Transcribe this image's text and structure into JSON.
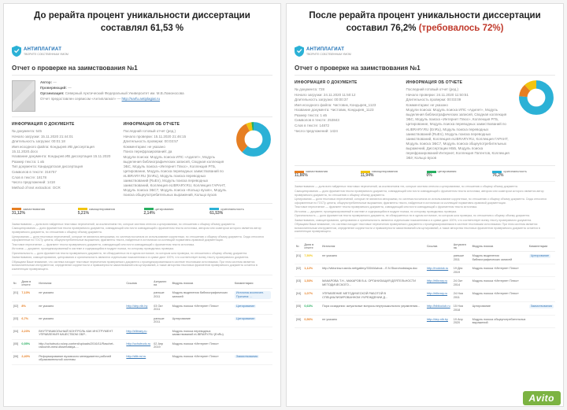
{
  "watermark": "Avito",
  "left": {
    "caption_line1": "До рерайта процент уникальности диссертации",
    "caption_line2": "составлял 61,53 %",
    "logo_text": "АНТИПЛАГИАТ",
    "logo_sub": "ТВОРИТЕ СОБСТВЕННЫМ УМОМ",
    "report_title": "Отчет о проверке на заимствования №1",
    "meta": {
      "author_lbl": "Автор:",
      "author": "—",
      "checker_lbl": "Проверяющий:",
      "checker": "—",
      "org_lbl": "Организация:",
      "org": "Северный Арктический Федеральный Университет им. М.В.Ломоносова",
      "provided_lbl": "Отчет предоставлен сервисом «Антиплагиат» —",
      "link_text": "http://narfu.antiplagiat.ru"
    },
    "doc": {
      "heading": "ИНФОРМАЦИЯ О ДОКУМЕНТЕ",
      "rows": [
        "№ документа: 545",
        "Начало загрузки: 15.11.2020 21:44:01",
        "Длительность загрузки: 00:01:18",
        "Имя исходного файла: Кондырев ИВ диссертация 15.11.2020.docx",
        "Название документа: Кондырев ИВ диссертация 15.11.2020",
        "Размер текста: 1 кБ",
        "Тип документа: Кандидатская диссертация",
        "Символов в тексте: 316757",
        "Слов в тексте: 18178",
        "Число предложений: 1418",
        "Method of text extraction: OCR"
      ]
    },
    "rep": {
      "heading": "ИНФОРМАЦИЯ ОБ ОТЧЕТЕ",
      "rows": [
        "Последний готовый отчет (ред.)",
        "Начало проверки: 15.11.2020 21:46:15",
        "Длительность проверки: 00:03:57",
        "Комментарии: не указано",
        "Поиск перефразирований: да",
        "Модули поиска: Модуль поиска ИПС «Адилет», Модуль выделения библиографических записей, Сводная коллекция ЭБС, Модуль поиска «Интернет Плюс», Коллекция РГБ, Цитирование, Модуль поиска переводных заимствований по eLIBRARY.RU (EnRu), Модуль поиска переводных заимствований (RuEn), Модуль поиска переводных заимствований, Коллекция eLIBRARY.RU, Коллекция ГАРАНТ, Модуль поиска ЭБС7, Модуль поиска «Кольцо вузов», Модуль поиска общеупотребительных выражений, Кольцо вузов"
      ]
    },
    "donut": {
      "colors": {
        "borrow": "#e67e22",
        "selfcite": "#f1c40f",
        "cite": "#27ae60",
        "orig": "#2bb1d6"
      },
      "borrow_pct": 31.12,
      "selfcite_pct": 5.21,
      "cite_pct": 2.14,
      "orig_pct": 61.53
    },
    "legend": {
      "borrow_lbl": "заимствования",
      "borrow_pct": "31,12%",
      "self_lbl": "самоцитирования",
      "self_pct": "5,21%",
      "cite_lbl": "цитирования",
      "cite_pct": "2,14%",
      "orig_lbl": "оригинальность",
      "orig_pct": "61,53%"
    },
    "fineprint": [
      "Заимствования — доля всех найденных текстовых пересечений, за исключением тех, которые система отнесла к цитированиям, по отношению к общему объему документа.",
      "Самоцитирования — доля фрагментов текста проверяемого документа, совпадающий или почти совпадающий с фрагментом текста источника, автором или соавтором которого является автор проверяемого документа, по отношению к общему объему документа.",
      "Цитирования — доля текстовых пересечений, которые не являются авторскими, но система посчитала их использование корректным, по отношению к общему объему документа. Сюда относятся оформленные по ГОСТу цитаты; общеупотребительные выражения; фрагменты текста, найденные в источниках из коллекций нормативно-правовой документации.",
      "Текстовое пересечение — фрагмент текста проверяемого документа, совпадающий или почти совпадающий с фрагментом текста источника.",
      "Источник — документ, проиндексированный в системе и содержащийся в модуле поиска, по которому проводилась проверка.",
      "Оригинальность — доля фрагментов текста проверяемого документа, не обнаруженных ни в одном источнике, по которым шла проверка, по отношению к общему объему документа.",
      "Заимствования, самоцитирования, цитирования и оригинальность являются отдельными показателями и в сумме дают 100%, что соответствует всему тексту проверяемого документа.",
      "Обращаем Ваше внимание, что система находит текстовые пересечения проверяемого документа с проиндексированными в системе текстовыми источниками. При этом система является вспомогательным инструментом, определение корректности и правомерности заимствований или цитирований, а также авторства текстовых фрагментов проверяемого документа остается в компетенции проверяющего."
    ],
    "table": {
      "cols": [
        "№",
        "Доля в отчете",
        "Источник",
        "Ссылка",
        "Актуален на",
        "Модуль поиска",
        "Комментарии"
      ],
      "rows": [
        {
          "n": "[01]",
          "pct": "7,13%",
          "pcol": "#e67e22",
          "src": "не указано",
          "link": "",
          "date": "раньше 2011",
          "mod": "Модуль выделения библиографических записей",
          "cmt": "Источник исключен. Причина: ..."
        },
        {
          "n": "[02]",
          "pct": "8%",
          "pcol": "#e67e22",
          "src": "не указано",
          "link": "http://dep.nlb.by",
          "date": "03 Окт 2011",
          "mod": "Модуль поиска «Интернет Плюс»",
          "cmt": "Цитирование"
        },
        {
          "n": "[03]",
          "pct": "6,7%",
          "pcol": "#e67e22",
          "src": "не указано",
          "link": "",
          "date": "раньше 2011",
          "mod": "Цитирование",
          "cmt": "Цитирование"
        },
        {
          "n": "[04]",
          "pct": "2,23%",
          "pcol": "#e67e22",
          "src": "ВНУТРИШКОЛЬНЫЙ КОНТРОЛЬ КАК ИНСТРУМЕНТ УПРАВЛЕНИЯ КАЧЕСТВОМ ОБР...",
          "link": "http://elibrary.ru",
          "date": "",
          "mod": "Модуль поиска переводных заимствований eLIBRARY.RU (EnRu)",
          "cmt": ""
        },
        {
          "n": "[05]",
          "pct": "0,55%",
          "pcol": "#27ae60",
          "src": "http://uchutrudu.ru/wp-content/uploads/2016/11/Raschet-rabochih-mest.dissertatsiya-...",
          "link": "http://uchutrudu.ru",
          "date": "02 Апр 2019",
          "mod": "Модуль поиска «Интернет Плюс»",
          "cmt": ""
        },
        {
          "n": "[06]",
          "pct": "2,40%",
          "pcol": "#e67e22",
          "src": "Реформирование вузовского менеджмента рабочей образовательной системы",
          "link": "http://dlib.rsl.ru",
          "date": "",
          "mod": "Модуль поиска «Интернет Плюс»",
          "cmt": "Заимствования"
        }
      ]
    }
  },
  "right": {
    "caption_line1": "После рерайта процент уникальности диссертации",
    "caption_line2_a": "составил 76,2% ",
    "caption_line2_b": "(требовалось 72%)",
    "logo_text": "АНТИПЛАГИАТ",
    "logo_sub": "ТВОРИТЕ СОБСТВЕННЫМ УМОМ",
    "report_title": "Отчет о проверке на заимствования №1",
    "doc": {
      "heading": "ИНФОРМАЦИЯ О ДОКУМЕНТЕ",
      "rows": [
        "№ документа: 728",
        "Начало загрузки: 24.11.2020 11:50:12",
        "Длительность загрузки: 00:00:37",
        "Имя исходного файла: Чистовик, Кондырев_1123",
        "Название документа: Чистовик, Кондырев_1123",
        "Размер текста: 1 кБ",
        "Символов в тексте: 253843",
        "Слов в тексте: 14872",
        "Число предложений: 1424"
      ]
    },
    "rep": {
      "heading": "ИНФОРМАЦИЯ ОБ ОТЧЕТЕ",
      "rows": [
        "Последний готовый отчет (ред.)",
        "Начало проверки: 24.11.2020 11:50:51",
        "Длительность проверки: 00:03:09",
        "Комментарии: не указано",
        "Модули поиска: Модуль поиска ИПС «Адилет», Модуль выделения библиографических записей, Сводная коллекция ЭБС, Модуль поиска «Интернет Плюс», Коллекция РГБ, Цитирование, Модуль поиска переводных заимствований по eLIBRARY.RU (EnRu), Модуль поиска переводных заимствований (RuEn), Модуль поиска переводных заимствований, Коллекция eLIBRARY.RU, Коллекция ГАРАНТ, Модуль поиска ЭБС7, Модуль поиска общеупотребительных выражений, Диссертации НББ, Модуль поиска перефразирований Интернет, Коллекция Патентов, Коллекция ЭБУ, Кольцо вузов"
      ]
    },
    "donut": {
      "colors": {
        "borrow": "#e67e22",
        "selfcite": "#f1c40f",
        "cite": "#27ae60",
        "orig": "#2bb1d6"
      },
      "borrow_pct": 11.86,
      "selfcite_pct": 11.94,
      "cite_pct": 0,
      "orig_pct": 76.2
    },
    "legend": {
      "borrow_lbl": "заимствования",
      "borrow_pct": "11,86%",
      "self_lbl": "самоцитирования",
      "self_pct": "11,94%",
      "cite_lbl": "цитирования",
      "cite_pct": "0%",
      "orig_lbl": "оригинальность",
      "orig_pct": "76,2%"
    },
    "fineprint": [
      "Заимствования — доля всех найденных текстовых пересечений, за исключением тех, которые система отнесла к цитированиям, по отношению к общему объему документа.",
      "Самоцитирования — доля фрагментов текста проверяемого документа, совпадающий или почти совпадающий с фрагментом текста источника, автором или соавтором которого является автор проверяемого документа, по отношению к общему объему документа.",
      "Цитирования — доля текстовых пересечений, которые не являются авторскими, но система посчитала их использование корректным, по отношению к общему объему документа. Сюда относятся оформленные по ГОСТу цитаты; общеупотребительные выражения; фрагменты текста, найденные в источниках из коллекций нормативно-правовой документации.",
      "Текстовое пересечение — фрагмент текста проверяемого документа, совпадающий или почти совпадающий с фрагментом текста источника.",
      "Источник — документ, проиндексированный в системе и содержащийся в модуле поиска, по которому проводилась проверка.",
      "Оригинальность — доля фрагментов текста проверяемого документа, не обнаруженных ни в одном источнике, по которым шла проверка, по отношению к общему объему документа.",
      "Заимствования, самоцитирования, цитирования и оригинальность являются отдельными показателями и в сумме дают 100%, что соответствует всему тексту проверяемого документа.",
      "Обращаем Ваше внимание, что система находит текстовые пересечения проверяемого документа с проиндексированными в системе текстовыми источниками. При этом система является вспомогательным инструментом, определение корректности и правомерности заимствований или цитирований, а также авторства текстовых фрагментов проверяемого документа остается в компетенции проверяющего."
    ],
    "table": {
      "cols": [
        "№",
        "Доля в отчете",
        "Источник",
        "Ссылка",
        "Актуален на",
        "Модуль поиска",
        "Комментарии"
      ],
      "rows": [
        {
          "n": "[01]",
          "pct": "7,50%",
          "pcol": "#f1c40f",
          "src": "не указано",
          "link": "",
          "date": "раньше 2011",
          "mod": "Модуль выделения библиографических записей",
          "cmt": "Цитирование"
        },
        {
          "n": "[02]",
          "pct": "1,12%",
          "pcol": "#e67e22",
          "src": "http://viktoriow.rusedu.net/gallery/3304/Azbuk…E.N.Skorohodskaya.doc",
          "link": "http://molotok.ru",
          "date": "19 Дек 2019",
          "mod": "Модуль поиска «Интернет Плюс»",
          "cmt": ""
        },
        {
          "n": "[03]",
          "pct": "1,53%",
          "pcol": "#e67e22",
          "src": "МАКАРОВА Т.Н., МАКАРОВ В.А. ОРГАНИЗАЦИЯ ДЕЯТЕЛЬНОСТИ МЕТОДИЧЕСКОГО...",
          "link": "http://elibrary.ru",
          "date": "24 Окт 2014",
          "mod": "Модуль поиска «Интернет Плюс»",
          "cmt": ""
        },
        {
          "n": "[04]",
          "pct": "1,07%",
          "pcol": "#e67e22",
          "src": "УПРАВЛЕНИЕ МЕТОДИЧЕСКОЙ РАБОТОЙ В СПЕЦИАЛИЗИРОВАННОМ УЧРЕЖДЕНИИ Д...",
          "link": "http://elibrary.ru",
          "date": "24 Ноя 2011",
          "mod": "Модуль поиска «Интернет Плюс»",
          "cmt": ""
        },
        {
          "n": "[05]",
          "pct": "0,63%",
          "pcol": "#27ae60",
          "src": "Пора созидания: актуальные вопросы внутришкольного управления...",
          "link": "http://biblioclub.ru",
          "date": "15 Ноя 2018",
          "mod": "Цитирование",
          "cmt": "Заимствования"
        },
        {
          "n": "[06]",
          "pct": "0,56%",
          "pcol": "#e67e22",
          "src": "не указано",
          "link": "http://dep.nlb.by",
          "date": "19 Апр 2020",
          "mod": "Модуль поиска общеупотребительных выражений",
          "cmt": ""
        }
      ]
    }
  }
}
